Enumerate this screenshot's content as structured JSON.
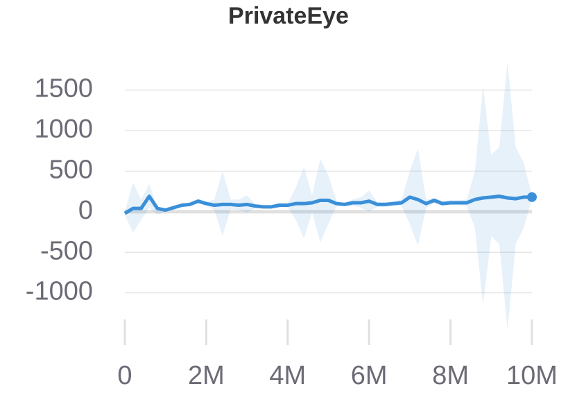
{
  "chart_data": {
    "type": "line",
    "title": "PrivateEye",
    "x": [
      0,
      200000,
      400000,
      600000,
      800000,
      1000000,
      1200000,
      1400000,
      1600000,
      1800000,
      2000000,
      2200000,
      2400000,
      2600000,
      2800000,
      3000000,
      3200000,
      3400000,
      3600000,
      3800000,
      4000000,
      4200000,
      4400000,
      4600000,
      4800000,
      5000000,
      5200000,
      5400000,
      5600000,
      5800000,
      6000000,
      6200000,
      6400000,
      6600000,
      6800000,
      7000000,
      7200000,
      7400000,
      7600000,
      7800000,
      8000000,
      8200000,
      8400000,
      8600000,
      8800000,
      9000000,
      9200000,
      9400000,
      9600000,
      9800000,
      10000000
    ],
    "series": [
      {
        "color": "#3a8fd9",
        "values": [
          -20,
          40,
          40,
          190,
          40,
          20,
          50,
          80,
          90,
          130,
          100,
          80,
          90,
          90,
          80,
          90,
          70,
          60,
          60,
          80,
          80,
          100,
          100,
          110,
          140,
          140,
          100,
          90,
          110,
          110,
          130,
          90,
          90,
          100,
          110,
          180,
          150,
          100,
          140,
          100,
          110,
          110,
          110,
          150,
          170,
          180,
          190,
          170,
          160,
          180,
          180
        ],
        "upper": [
          0,
          360,
          150,
          340,
          60,
          40,
          80,
          100,
          110,
          160,
          120,
          150,
          500,
          150,
          150,
          200,
          100,
          80,
          80,
          110,
          100,
          300,
          550,
          200,
          650,
          450,
          130,
          110,
          150,
          180,
          260,
          120,
          120,
          130,
          150,
          500,
          780,
          150,
          170,
          130,
          140,
          140,
          150,
          500,
          1550,
          700,
          800,
          1850,
          800,
          600,
          200
        ],
        "lower": [
          -40,
          -260,
          -100,
          50,
          -40,
          0,
          20,
          60,
          70,
          100,
          80,
          20,
          -300,
          30,
          20,
          -10,
          40,
          40,
          40,
          50,
          60,
          -100,
          -330,
          0,
          -380,
          -150,
          70,
          70,
          70,
          50,
          0,
          60,
          60,
          70,
          70,
          -150,
          -420,
          50,
          110,
          70,
          80,
          80,
          70,
          -200,
          -1150,
          -300,
          -400,
          -1460,
          -400,
          -200,
          160
        ]
      }
    ],
    "xlim": [
      0,
      10000000
    ],
    "xticks": [
      0,
      {
        "value": 2000000,
        "label": "2M"
      },
      {
        "value": 4000000,
        "label": "4M"
      },
      {
        "value": 6000000,
        "label": "6M"
      },
      {
        "value": 8000000,
        "label": "8M"
      },
      {
        "value": 10000000,
        "label": "10M"
      }
    ],
    "ylim": [
      -1500,
      1900
    ],
    "yticks": [
      -1000,
      -500,
      0,
      500,
      1000,
      1500
    ],
    "grid": true
  }
}
